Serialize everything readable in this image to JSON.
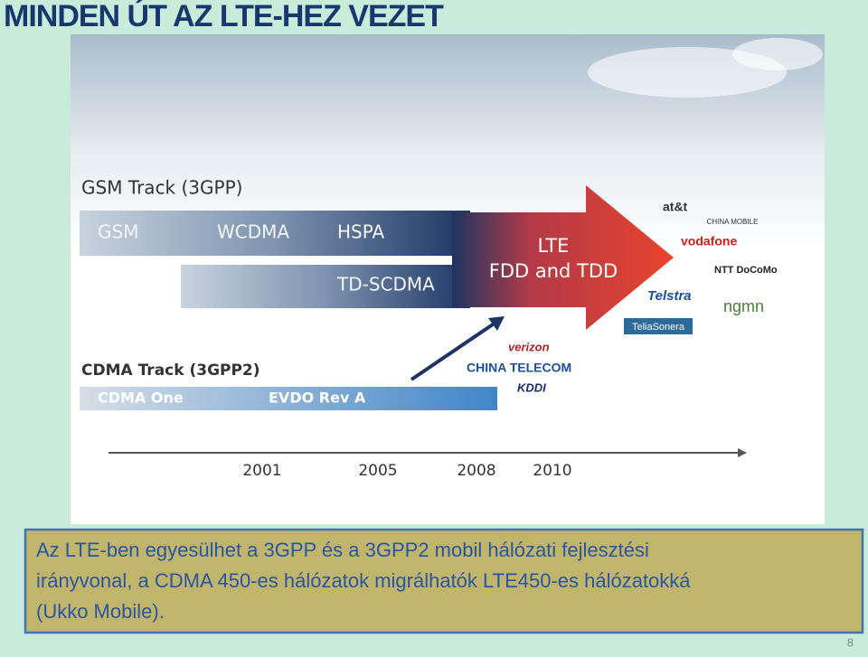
{
  "header": {
    "title": "MINDEN ÚT AZ LTE-HEZ VEZET"
  },
  "diagram": {
    "gsm_track": "GSM Track (3GPP)",
    "gsm_bar": [
      "GSM",
      "WCDMA",
      "HSPA"
    ],
    "td_bar": "TD-SCDMA",
    "lte": [
      "LTE",
      "FDD and TDD"
    ],
    "cdma_track": "CDMA Track (3GPP2)",
    "cdma_bar": [
      "CDMA One",
      "EVDO Rev A"
    ],
    "years": [
      "2001",
      "2005",
      "2008",
      "2010"
    ],
    "operators_cdma": [
      "verizon",
      "CHINA TELECOM",
      "KDDI"
    ],
    "operators_lte": [
      "at&t",
      "CHINA MOBILE",
      "vodafone",
      "NTT DoCoMo",
      "Telstra",
      "ngmn",
      "TeliaSonera"
    ]
  },
  "note": {
    "lines": [
      "Az LTE-ben  egyesülhet a 3GPP és a 3GPP2 mobil hálózati fejlesztési",
      "irányvonal, a CDMA 450-es hálózatok migrálhatók LTE450-es hálózatokká",
      "(Ukko Mobile)."
    ]
  },
  "footer": {
    "page": "8"
  }
}
